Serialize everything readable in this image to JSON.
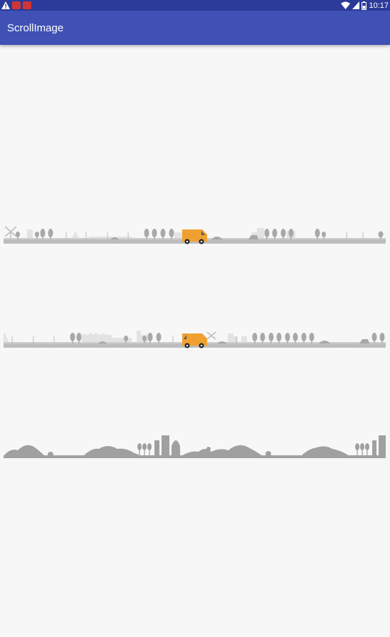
{
  "status_bar": {
    "time": "10:17",
    "icons": [
      "warning-icon",
      "notification-app-icon",
      "notification-app-icon",
      "wifi-icon",
      "signal-icon",
      "battery-icon"
    ]
  },
  "app_bar": {
    "title": "ScrollImage",
    "background_color": "#3f51b5",
    "status_color": "#2c3a9a"
  },
  "scroll_images": [
    {
      "name": "city-road-strip-1",
      "vehicle": "van",
      "vehicle_color": "#f0a030"
    },
    {
      "name": "city-road-strip-2",
      "vehicle": "van",
      "vehicle_color": "#f0a030"
    },
    {
      "name": "hills-strip",
      "color": "#a0a0a0"
    }
  ]
}
